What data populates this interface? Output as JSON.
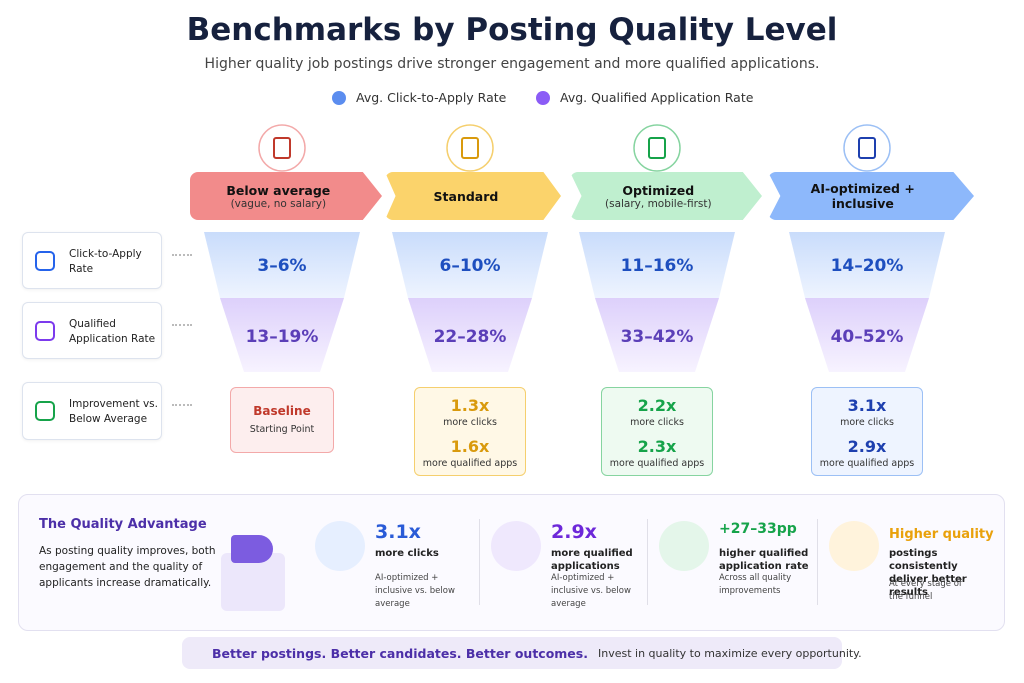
{
  "header": {
    "title": "Benchmarks by Posting Quality Level",
    "subtitle": "Higher quality job postings drive stronger engagement and more qualified applications."
  },
  "legend": [
    "Avg. Click-to-Apply Rate",
    "Avg. Qualified Application Rate"
  ],
  "rows": [
    "Click-to-Apply Rate",
    "Qualified Application Rate",
    "Improvement vs. Below Average"
  ],
  "levels": [
    {
      "name": "Below average",
      "detail": "(vague, no salary)",
      "click_rate": "3–6%",
      "qualified_rate": "13–19%",
      "improvement": {
        "title": "Baseline",
        "subtitle": "Starting Point"
      }
    },
    {
      "name": "Standard",
      "click_rate": "6–10%",
      "qualified_rate": "22–28%",
      "improvement": [
        {
          "value": "1.3x",
          "label": "more clicks"
        },
        {
          "value": "1.6x",
          "label": "more qualified apps"
        }
      ]
    },
    {
      "name": "Optimized",
      "detail": "(salary, mobile-first)",
      "click_rate": "11–16%",
      "qualified_rate": "33–42%",
      "improvement": [
        {
          "value": "2.2x",
          "label": "more clicks"
        },
        {
          "value": "2.3x",
          "label": "more qualified apps"
        }
      ]
    },
    {
      "name": "AI-optimized + inclusive",
      "click_rate": "14–20%",
      "qualified_rate": "40–52%",
      "improvement": [
        {
          "value": "3.1x",
          "label": "more clicks"
        },
        {
          "value": "2.9x",
          "label": "more qualified apps"
        }
      ]
    }
  ],
  "advantage": {
    "title": "The Quality Advantage",
    "text": "As posting quality improves, both engagement and the quality of applicants increase dramatically.",
    "stats": [
      {
        "value": "3.1x",
        "label": "more clicks",
        "note": "AI-optimized + inclusive vs. below average"
      },
      {
        "value": "2.9x",
        "label": "more qualified applications",
        "note": "AI-optimized + inclusive vs. below average"
      },
      {
        "value": "+27–33pp",
        "label": "higher qualified application rate",
        "note": "Across all quality improvements"
      },
      {
        "value": "Higher quality",
        "label": "postings consistently deliver better results",
        "note": "At every stage of the funnel"
      }
    ]
  },
  "footer": {
    "headline": "Better postings. Better candidates. Better outcomes.",
    "text": "Invest in quality to maximize every opportunity."
  }
}
